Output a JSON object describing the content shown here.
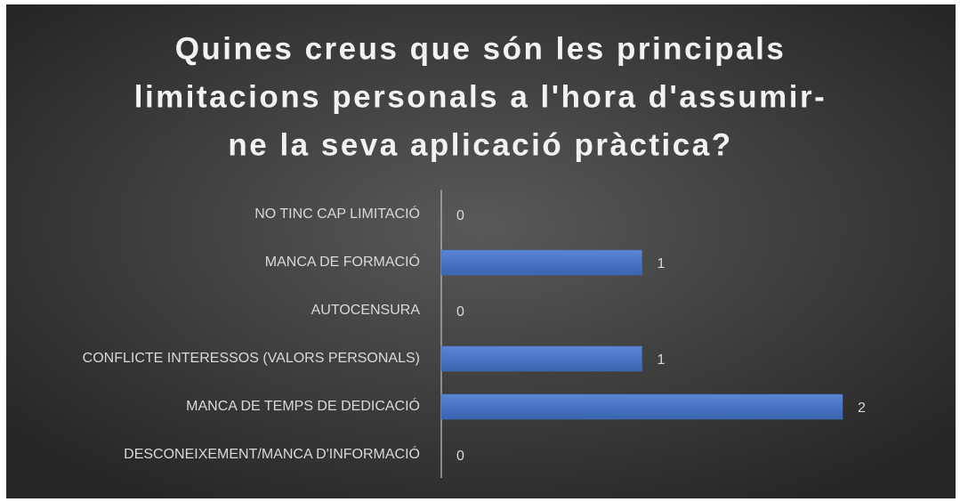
{
  "chart_data": {
    "type": "bar",
    "orientation": "horizontal",
    "title": [
      "Quines creus que són les principals",
      "limitacions personals a l'hora d'assumir-",
      "ne  la seva aplicació pràctica?"
    ],
    "categories": [
      "NO TINC CAP LIMITACIÓ",
      "MANCA DE FORMACIÓ",
      "AUTOCENSURA",
      "CONFLICTE INTERESSOS (VALORS PERSONALS)",
      "MANCA DE TEMPS DE DEDICACIÓ",
      "DESCONEIXEMENT/MANCA D'INFORMACIÓ"
    ],
    "values": [
      0,
      1,
      0,
      1,
      2,
      0
    ],
    "color": "#4472c4"
  }
}
